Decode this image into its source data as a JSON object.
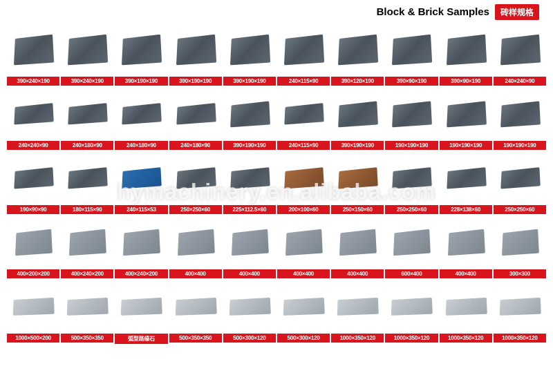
{
  "header": {
    "title": "Block & Brick Samples",
    "badge": "砖样规格",
    "badge_bg": "#d8151c"
  },
  "watermark": "hymachinery.en.alibaba.com",
  "grid": {
    "cols": 10,
    "rows": 5,
    "caption_bg": "#d8151c",
    "caption_color": "#ffffff",
    "items": [
      {
        "dim": "390×240×190",
        "style": "tall"
      },
      {
        "dim": "390×240×190",
        "style": "tall"
      },
      {
        "dim": "390×190×190",
        "style": "tall"
      },
      {
        "dim": "390×190×190",
        "style": "tall"
      },
      {
        "dim": "390×190×190",
        "style": "tall"
      },
      {
        "dim": "240×115×90",
        "style": "tall"
      },
      {
        "dim": "390×120×190",
        "style": "tall"
      },
      {
        "dim": "390×90×190",
        "style": "tall"
      },
      {
        "dim": "390×90×190",
        "style": "tall"
      },
      {
        "dim": "240×240×90",
        "style": "tall"
      },
      {
        "dim": "240×240×90",
        "style": "flat"
      },
      {
        "dim": "240×180×90",
        "style": "flat"
      },
      {
        "dim": "240×180×90",
        "style": "flat"
      },
      {
        "dim": "240×180×90",
        "style": "flat"
      },
      {
        "dim": "390×190×190",
        "style": "med"
      },
      {
        "dim": "240×115×90",
        "style": "flat"
      },
      {
        "dim": "390×190×190",
        "style": "med"
      },
      {
        "dim": "190×190×190",
        "style": "med"
      },
      {
        "dim": "190×190×190",
        "style": "med"
      },
      {
        "dim": "190×190×190",
        "style": "med"
      },
      {
        "dim": "190×90×90",
        "style": "flat"
      },
      {
        "dim": "180×115×90",
        "style": "flat"
      },
      {
        "dim": "240×115×53",
        "style": "flat blue"
      },
      {
        "dim": "250×250×60",
        "style": "flat"
      },
      {
        "dim": "225×112.5×60",
        "style": "flat"
      },
      {
        "dim": "200×100×60",
        "style": "flat brown"
      },
      {
        "dim": "250×150×60",
        "style": "flat brown"
      },
      {
        "dim": "250×250×60",
        "style": "flat"
      },
      {
        "dim": "228×138×60",
        "style": "flat"
      },
      {
        "dim": "250×250×60",
        "style": "flat"
      },
      {
        "dim": "400×200×200",
        "style": "r4"
      },
      {
        "dim": "400×240×200",
        "style": "r4"
      },
      {
        "dim": "400×240×200",
        "style": "r4"
      },
      {
        "dim": "400×400",
        "style": "r4"
      },
      {
        "dim": "400×400",
        "style": "r4"
      },
      {
        "dim": "400×400",
        "style": "r4"
      },
      {
        "dim": "400×400",
        "style": "r4"
      },
      {
        "dim": "600×400",
        "style": "r4"
      },
      {
        "dim": "400×400",
        "style": "r4"
      },
      {
        "dim": "300×300",
        "style": "r4"
      },
      {
        "dim": "1000×500×200",
        "style": "r5"
      },
      {
        "dim": "500×350×350",
        "style": "r5"
      },
      {
        "dim": "弧型路缘石",
        "style": "r5"
      },
      {
        "dim": "500×350×350",
        "style": "r5"
      },
      {
        "dim": "500×300×120",
        "style": "r5"
      },
      {
        "dim": "500×300×120",
        "style": "r5"
      },
      {
        "dim": "1000×350×120",
        "style": "r5"
      },
      {
        "dim": "1000×350×120",
        "style": "r5"
      },
      {
        "dim": "1000×350×120",
        "style": "r5"
      },
      {
        "dim": "1000×350×120",
        "style": "r5"
      }
    ]
  }
}
